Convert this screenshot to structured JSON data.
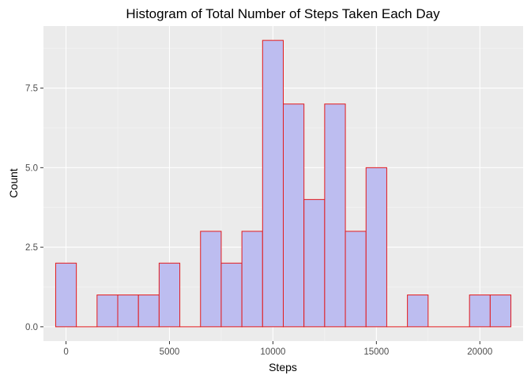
{
  "chart_data": {
    "type": "bar",
    "title": "Histogram of Total Number of Steps Taken Each Day",
    "xlabel": "Steps",
    "ylabel": "Count",
    "bin_width": 1000,
    "bins": [
      {
        "x": 0,
        "count": 2
      },
      {
        "x": 1000,
        "count": 0
      },
      {
        "x": 2000,
        "count": 1
      },
      {
        "x": 3000,
        "count": 1
      },
      {
        "x": 4000,
        "count": 1
      },
      {
        "x": 5000,
        "count": 2
      },
      {
        "x": 6000,
        "count": 0
      },
      {
        "x": 7000,
        "count": 3
      },
      {
        "x": 8000,
        "count": 2
      },
      {
        "x": 9000,
        "count": 3
      },
      {
        "x": 10000,
        "count": 9
      },
      {
        "x": 11000,
        "count": 7
      },
      {
        "x": 12000,
        "count": 4
      },
      {
        "x": 13000,
        "count": 7
      },
      {
        "x": 14000,
        "count": 3
      },
      {
        "x": 15000,
        "count": 5
      },
      {
        "x": 16000,
        "count": 0
      },
      {
        "x": 17000,
        "count": 1
      },
      {
        "x": 18000,
        "count": 0
      },
      {
        "x": 19000,
        "count": 0
      },
      {
        "x": 20000,
        "count": 1
      },
      {
        "x": 21000,
        "count": 1
      }
    ],
    "xlim": [
      -1090,
      22090
    ],
    "ylim": [
      -0.45,
      9.45
    ],
    "x_ticks": [
      0,
      5000,
      10000,
      15000,
      20000
    ],
    "x_tick_labels": [
      "0",
      "5000",
      "10000",
      "15000",
      "20000"
    ],
    "y_ticks": [
      0,
      2.5,
      5,
      7.5
    ],
    "y_tick_labels": [
      "0.0",
      "2.5",
      "5.0",
      "7.5"
    ],
    "grid": true,
    "colors": {
      "panel_background": "#ebebeb",
      "grid_major": "#ffffff",
      "grid_minor": "#f5f5f5",
      "bar_fill": "#bdbdf0",
      "bar_outline": "#e31a1c",
      "tick_text": "#4d4d4d",
      "tick_mark": "#333333"
    }
  }
}
